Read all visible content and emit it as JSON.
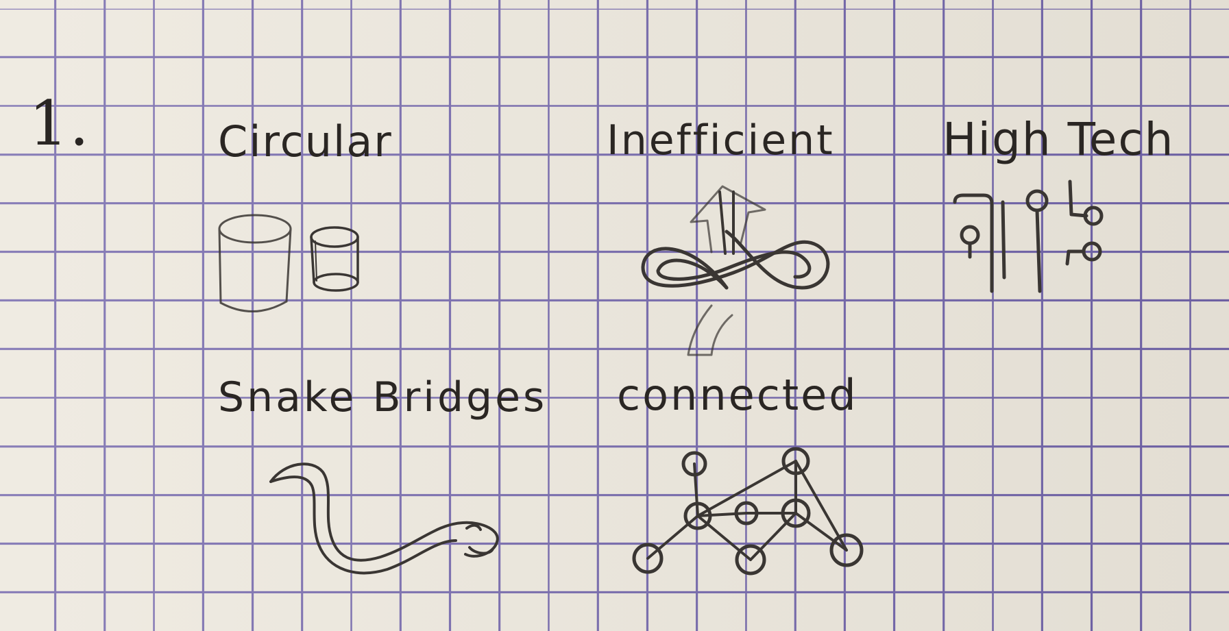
{
  "sheet": {
    "item_number": "1.",
    "labels": {
      "circular": "Circular",
      "inefficient": "Inefficient",
      "high_tech": "High Tech",
      "snake_bridges": "Snake Bridges",
      "connected": "connected"
    }
  },
  "colors": {
    "paper": "#ece7dc",
    "grid": "#6f62a8",
    "ink": "#2a2623",
    "pencil": "#3a3633"
  },
  "icons": {
    "circular": "cylinders-sketch",
    "inefficient": "knot-arrow-sketch",
    "high_tech": "circuit-traces-sketch",
    "snake_bridges": "snake-sketch",
    "connected": "node-network-sketch"
  }
}
